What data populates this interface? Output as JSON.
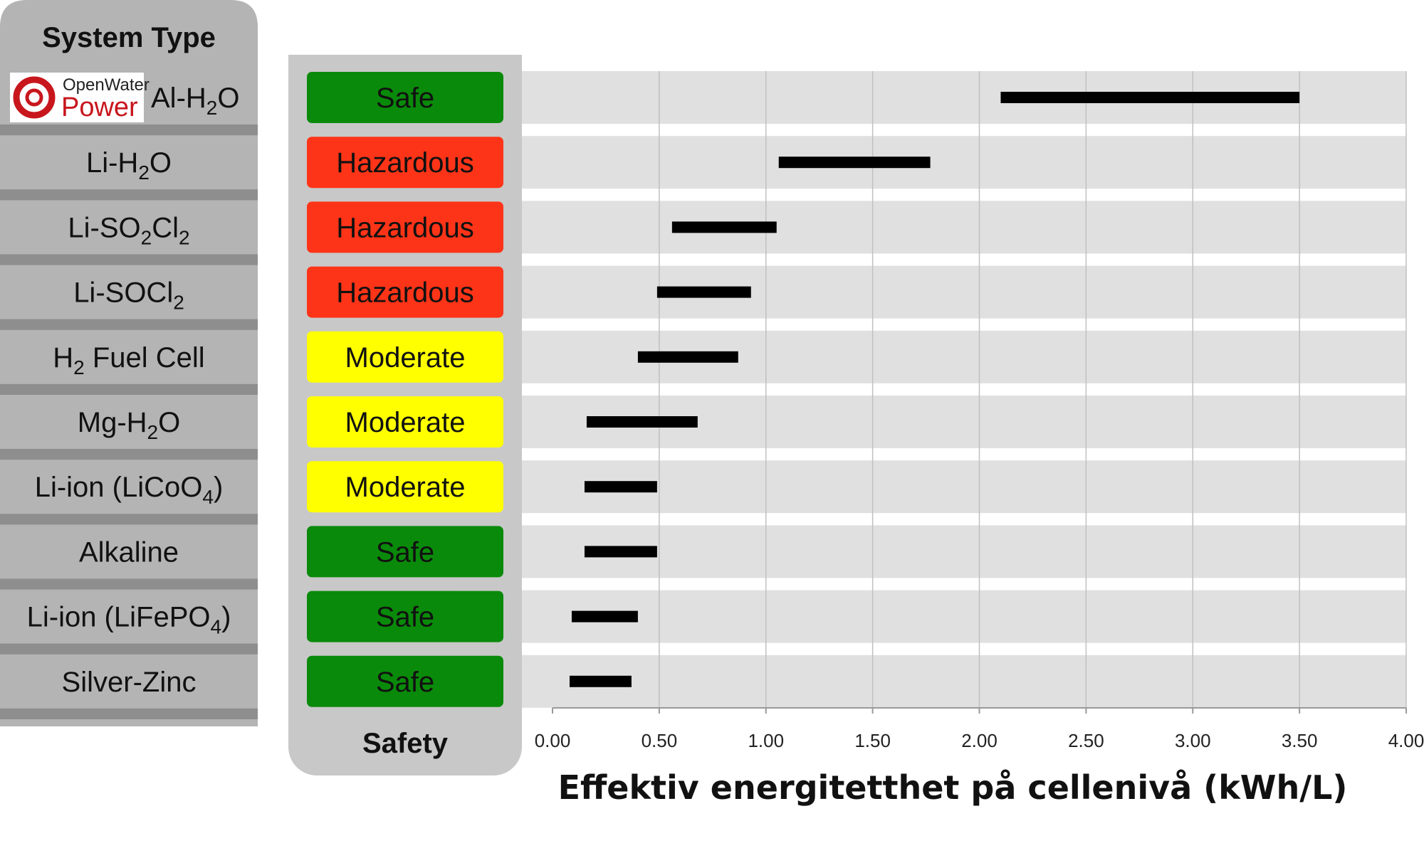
{
  "columns": {
    "system_header": "System Type",
    "safety_header": "Safety"
  },
  "logo": {
    "line1": "OpenWater",
    "line2": "Power",
    "accent": "#c8161d"
  },
  "colors": {
    "Safe": "#0a8a0a",
    "Hazardous": "#fe3418",
    "Moderate": "#ffff00"
  },
  "chart_data": {
    "type": "bar",
    "subtype": "floating-range",
    "xlabel": "Effektiv energitetthet på cellenivå (kWh/L)",
    "xlim": [
      0,
      4
    ],
    "xticks": [
      "0.00",
      "0.50",
      "1.00",
      "1.50",
      "2.00",
      "2.50",
      "3.00",
      "3.50",
      "4.00"
    ],
    "grid": true,
    "rows": [
      {
        "system": "Al-H2O",
        "label_parts": [
          [
            "Al-H",
            ""
          ],
          [
            "2",
            "sub"
          ],
          [
            "O",
            ""
          ]
        ],
        "safety": "Safe",
        "range": [
          2.1,
          3.5
        ],
        "logo": true
      },
      {
        "system": "Li-H2O",
        "label_parts": [
          [
            "Li-H",
            ""
          ],
          [
            "2",
            "sub"
          ],
          [
            "O",
            ""
          ]
        ],
        "safety": "Hazardous",
        "range": [
          1.06,
          1.77
        ]
      },
      {
        "system": "Li-SO2Cl2",
        "label_parts": [
          [
            "Li-SO",
            ""
          ],
          [
            "2",
            "sub"
          ],
          [
            "Cl",
            ""
          ],
          [
            "2",
            "sub"
          ]
        ],
        "safety": "Hazardous",
        "range": [
          0.56,
          1.05
        ]
      },
      {
        "system": "Li-SOCl2",
        "label_parts": [
          [
            "Li-SOCl",
            ""
          ],
          [
            "2",
            "sub"
          ]
        ],
        "safety": "Hazardous",
        "range": [
          0.49,
          0.93
        ]
      },
      {
        "system": "H2 Fuel Cell",
        "label_parts": [
          [
            "H",
            ""
          ],
          [
            "2",
            "sub"
          ],
          [
            " Fuel Cell",
            ""
          ]
        ],
        "safety": "Moderate",
        "range": [
          0.4,
          0.87
        ]
      },
      {
        "system": "Mg-H2O",
        "label_parts": [
          [
            "Mg-H",
            ""
          ],
          [
            "2",
            "sub"
          ],
          [
            "O",
            ""
          ]
        ],
        "safety": "Moderate",
        "range": [
          0.16,
          0.68
        ]
      },
      {
        "system": "Li-ion (LiCoO4)",
        "label_parts": [
          [
            "Li-ion (LiCoO",
            ""
          ],
          [
            "4",
            "sub"
          ],
          [
            ")",
            ""
          ]
        ],
        "safety": "Moderate",
        "range": [
          0.15,
          0.49
        ]
      },
      {
        "system": "Alkaline",
        "label_parts": [
          [
            "Alkaline",
            ""
          ]
        ],
        "safety": "Safe",
        "range": [
          0.15,
          0.49
        ]
      },
      {
        "system": "Li-ion (LiFePO4)",
        "label_parts": [
          [
            "Li-ion (LiFePO",
            ""
          ],
          [
            "4",
            "sub"
          ],
          [
            ")",
            ""
          ]
        ],
        "safety": "Safe",
        "range": [
          0.09,
          0.4
        ]
      },
      {
        "system": "Silver-Zinc",
        "label_parts": [
          [
            "Silver-Zinc",
            ""
          ]
        ],
        "safety": "Safe",
        "range": [
          0.08,
          0.37
        ]
      }
    ]
  }
}
